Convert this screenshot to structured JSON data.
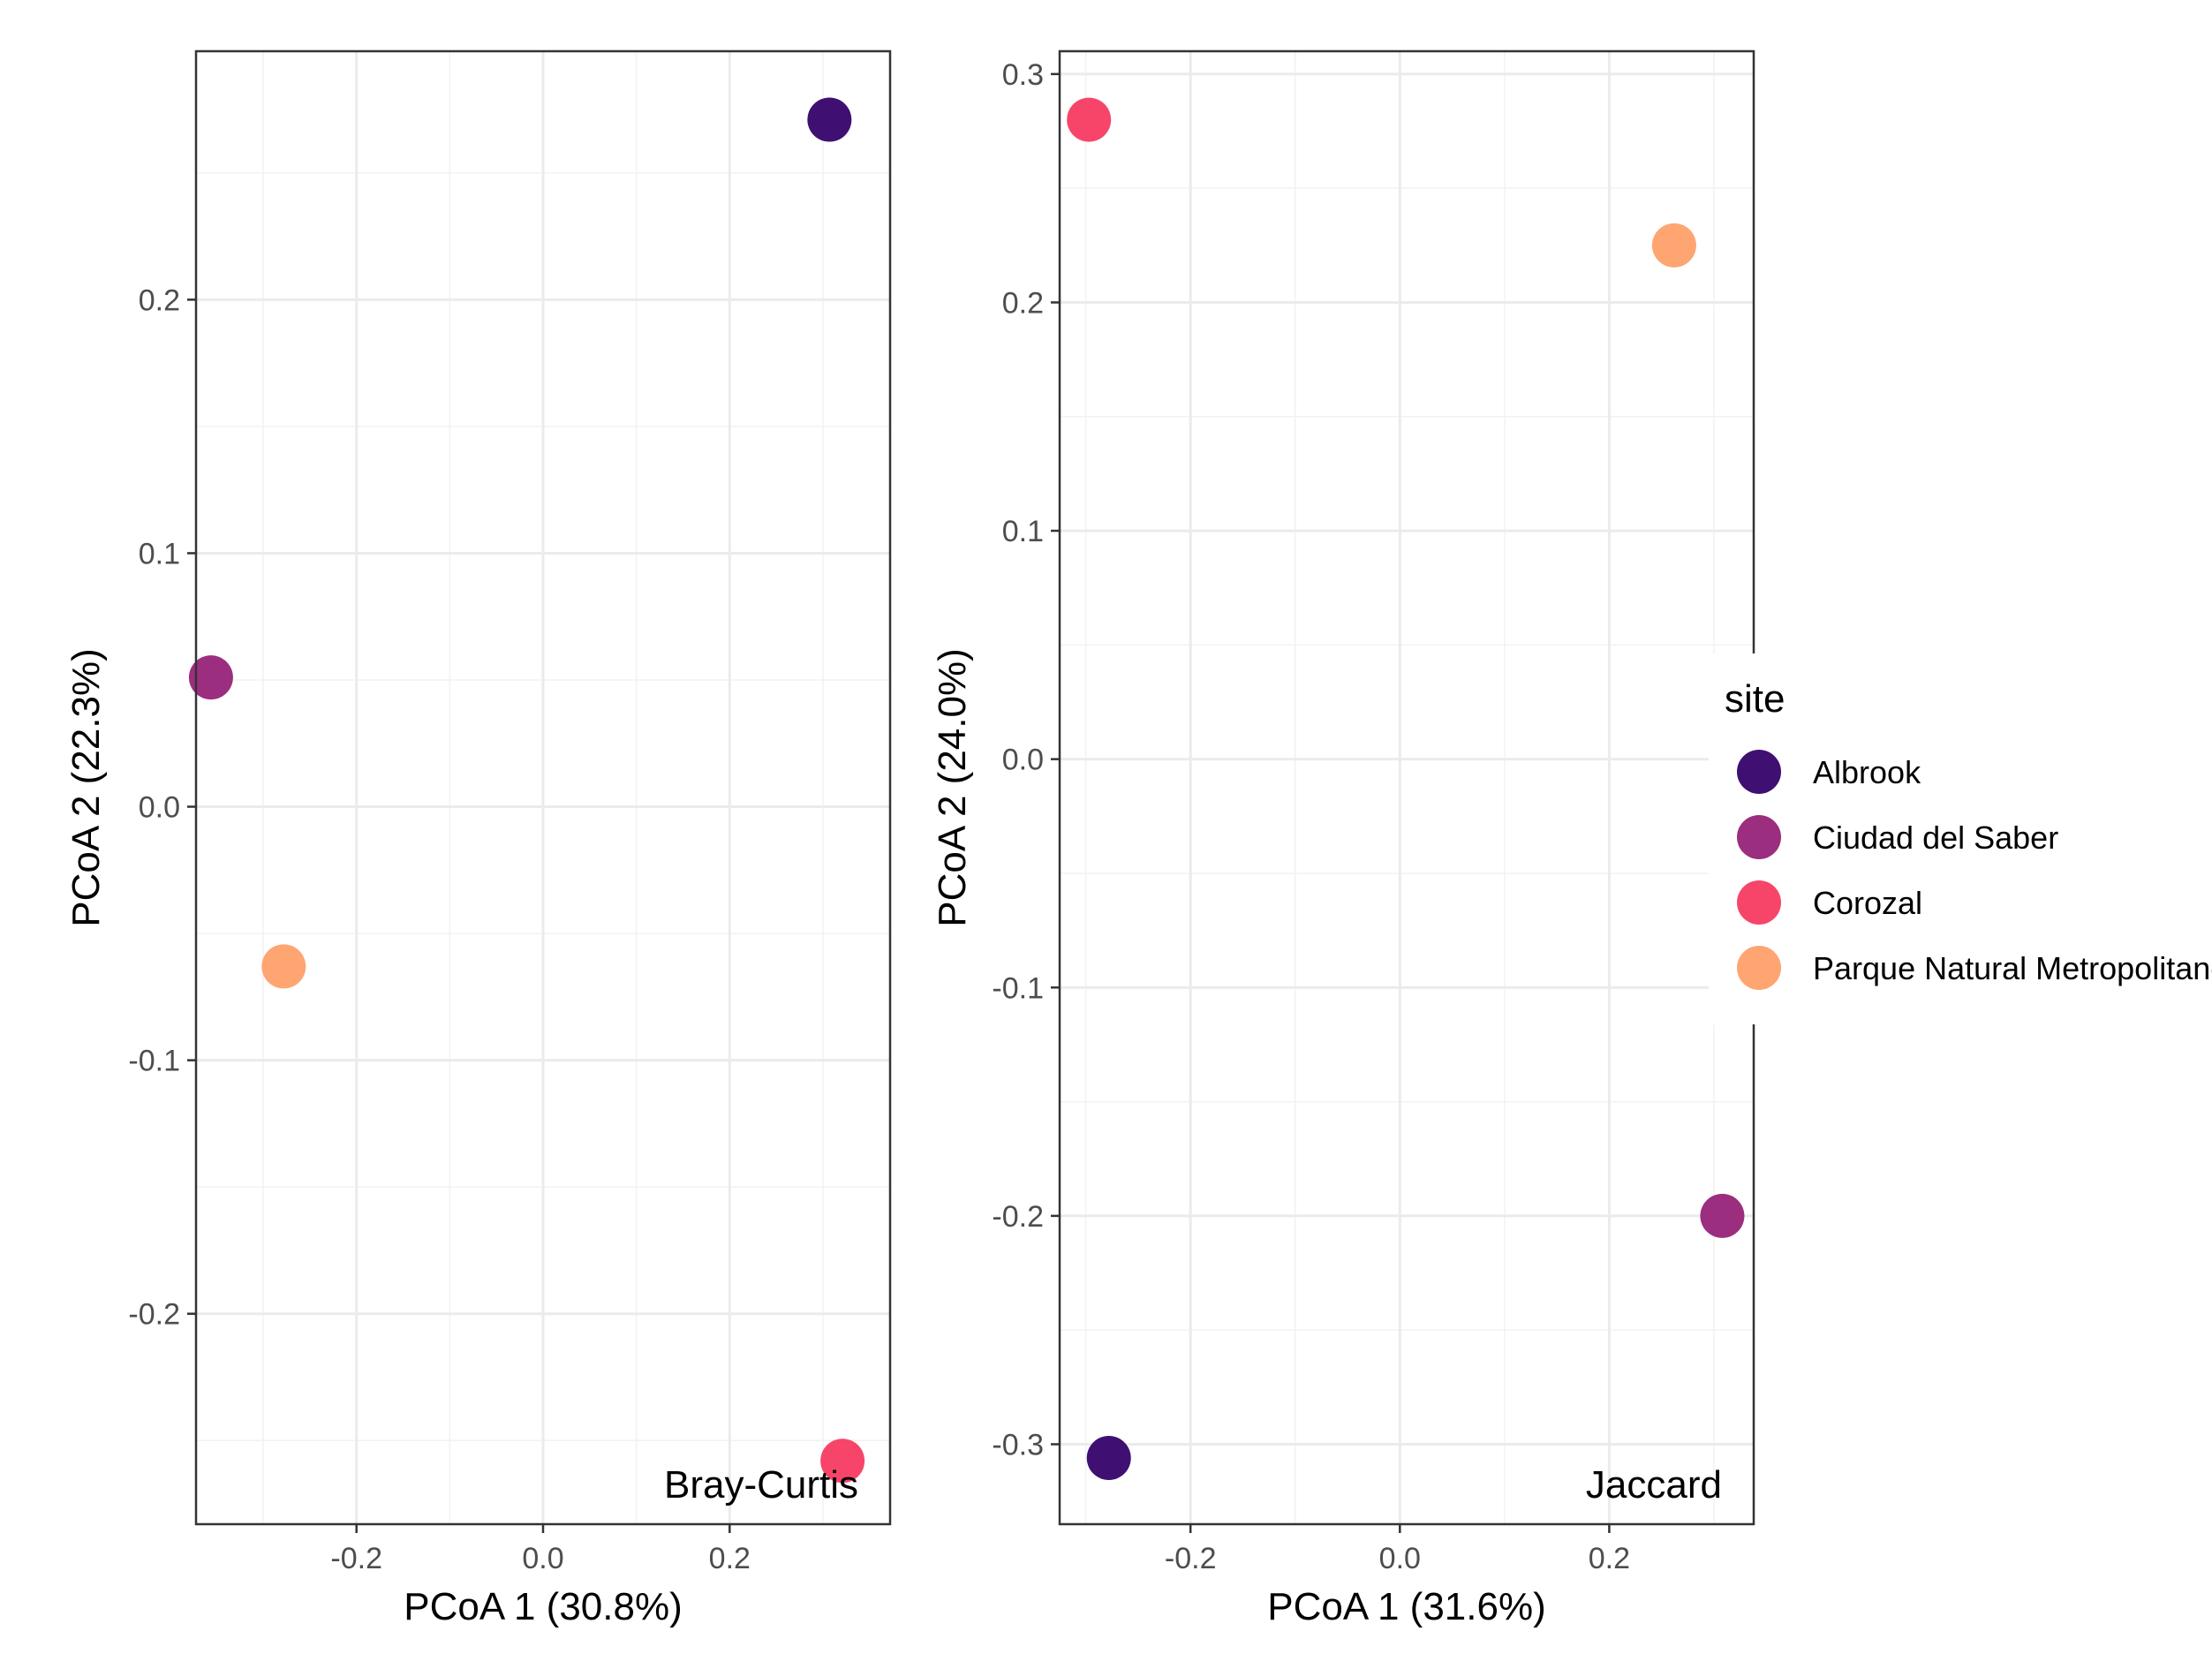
{
  "chart_data": [
    {
      "type": "scatter",
      "title": "",
      "annotation": "Bray-Curtis",
      "xlabel": "PCoA 1 (30.8%)",
      "ylabel": "PCoA 2 (22.3%)",
      "xlim": [
        -0.372,
        0.372
      ],
      "ylim": [
        -0.283,
        0.298
      ],
      "xticks": [
        -0.2,
        0.0,
        0.2
      ],
      "xtick_labels": [
        "-0.2",
        "0.0",
        "0.2"
      ],
      "yticks": [
        -0.2,
        -0.1,
        0.0,
        0.1,
        0.2
      ],
      "ytick_labels": [
        "-0.2",
        "-0.1",
        "0.0",
        "0.1",
        "0.2"
      ],
      "grid": true,
      "points": [
        {
          "site": "Albrook",
          "x": 0.307,
          "y": 0.271
        },
        {
          "site": "Ciudad del Saber",
          "x": -0.356,
          "y": 0.051
        },
        {
          "site": "Corozal",
          "x": 0.321,
          "y": -0.258
        },
        {
          "site": "Parque Natural Metropolitano",
          "x": -0.278,
          "y": -0.063
        }
      ]
    },
    {
      "type": "scatter",
      "title": "",
      "annotation": "Jaccard",
      "xlabel": "PCoA 1 (31.6%)",
      "ylabel": "PCoA 2 (24.0%)",
      "xlim": [
        -0.325,
        0.338
      ],
      "ylim": [
        -0.335,
        0.31
      ],
      "xticks": [
        -0.2,
        0.0,
        0.2
      ],
      "xtick_labels": [
        "-0.2",
        "0.0",
        "0.2"
      ],
      "yticks": [
        -0.3,
        -0.2,
        -0.1,
        0.0,
        0.1,
        0.2,
        0.3
      ],
      "ytick_labels": [
        "-0.3",
        "-0.2",
        "-0.1",
        "0.0",
        "0.1",
        "0.2",
        "0.3"
      ],
      "grid": true,
      "points": [
        {
          "site": "Albrook",
          "x": -0.278,
          "y": -0.306
        },
        {
          "site": "Ciudad del Saber",
          "x": 0.308,
          "y": -0.2
        },
        {
          "site": "Corozal",
          "x": -0.297,
          "y": 0.28
        },
        {
          "site": "Parque Natural Metropolitano",
          "x": 0.262,
          "y": 0.225
        }
      ]
    }
  ],
  "legend": {
    "title": "site",
    "placement": "right",
    "items": [
      {
        "label": "Albrook",
        "color": "#3f0f72"
      },
      {
        "label": "Ciudad del Saber",
        "color": "#9c2e7f"
      },
      {
        "label": "Corozal",
        "color": "#f7456a"
      },
      {
        "label": "Parque Natural Metropolitano",
        "color": "#fea572"
      }
    ]
  }
}
